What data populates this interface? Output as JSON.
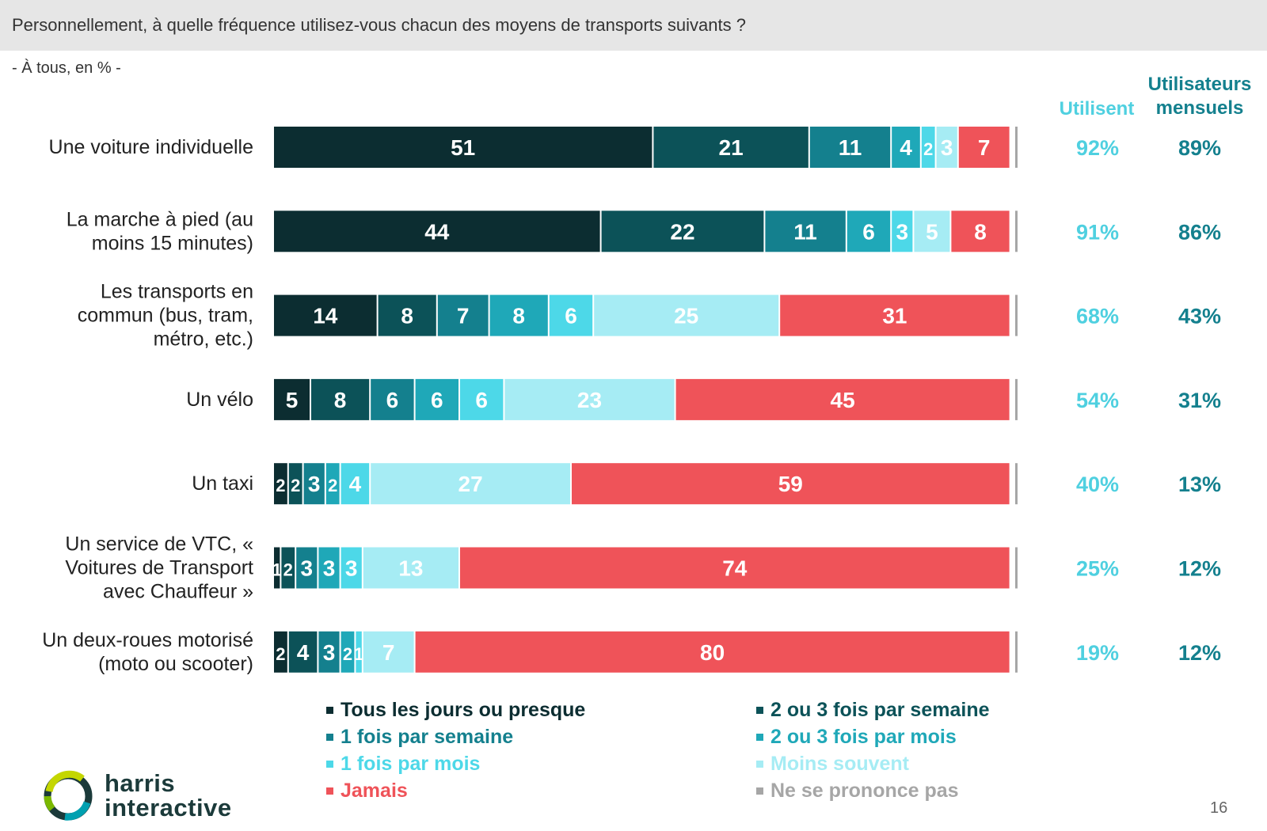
{
  "header": {
    "question": "Personnellement, à quelle fréquence utilisez-vous chacun des moyens de transports suivants ?",
    "base": "- À tous, en % -"
  },
  "columns": {
    "use_label": "Utilisent",
    "monthly_label": "Utilisateurs mensuels"
  },
  "colors": {
    "tous_les_jours": "#0c2d31",
    "deux_trois_semaine": "#0c5258",
    "une_fois_semaine": "#14808e",
    "deux_trois_mois": "#1fa8b8",
    "une_fois_mois": "#4dd8e8",
    "moins_souvent": "#a6ecf4",
    "jamais": "#ef5359",
    "nsp": "#a6a6a6",
    "use_text": "#4fd0e0",
    "monthly_text": "#14808e"
  },
  "chart_data": {
    "type": "bar",
    "orientation": "horizontal",
    "stacked": true,
    "unit": "%",
    "categories": [
      "Une voiture individuelle",
      "La marche à pied (au moins 15 minutes)",
      "Les transports en commun (bus, tram, métro, etc.)",
      "Un vélo",
      "Un taxi",
      "Un service de VTC, « Voitures de Transport avec Chauffeur »",
      "Un deux-roues motorisé (moto ou scooter)"
    ],
    "category_lines": [
      [
        "Une voiture individuelle"
      ],
      [
        "La marche à pied (au",
        "moins 15 minutes)"
      ],
      [
        "Les transports en",
        "commun (bus, tram,",
        "métro, etc.)"
      ],
      [
        "Un vélo"
      ],
      [
        "Un taxi"
      ],
      [
        "Un service de VTC, «",
        "Voitures de Transport",
        "avec Chauffeur »"
      ],
      [
        "Un deux-roues motorisé",
        "(moto ou scooter)"
      ]
    ],
    "series": [
      {
        "name": "Tous les jours ou presque",
        "color": "#0c2d31",
        "values": [
          51,
          44,
          14,
          5,
          2,
          1,
          2
        ]
      },
      {
        "name": "2 ou 3 fois par semaine",
        "color": "#0c5258",
        "values": [
          21,
          22,
          8,
          8,
          2,
          2,
          4
        ]
      },
      {
        "name": "1 fois par semaine",
        "color": "#14808e",
        "values": [
          11,
          11,
          7,
          6,
          3,
          3,
          3
        ]
      },
      {
        "name": "2 ou 3 fois par mois",
        "color": "#1fa8b8",
        "values": [
          4,
          6,
          8,
          6,
          2,
          3,
          2
        ]
      },
      {
        "name": "1 fois par mois",
        "color": "#4dd8e8",
        "values": [
          2,
          3,
          6,
          6,
          4,
          3,
          1
        ]
      },
      {
        "name": "Moins souvent",
        "color": "#a6ecf4",
        "values": [
          3,
          5,
          25,
          23,
          27,
          13,
          7
        ]
      },
      {
        "name": "Jamais",
        "color": "#ef5359",
        "values": [
          7,
          8,
          31,
          45,
          59,
          74,
          80
        ]
      },
      {
        "name": "Ne se prononce pas",
        "color": "#a6a6a6",
        "values": [
          0,
          0,
          0,
          0,
          0,
          0,
          0
        ]
      }
    ],
    "utilisent": [
      "92%",
      "91%",
      "68%",
      "54%",
      "40%",
      "25%",
      "19%"
    ],
    "utilisateurs_mensuels": [
      "89%",
      "86%",
      "43%",
      "31%",
      "13%",
      "12%",
      "12%"
    ],
    "legend": [
      {
        "label": "Tous les jours ou presque",
        "color": "#0c2d31"
      },
      {
        "label": "2 ou 3 fois par semaine",
        "color": "#0c5258"
      },
      {
        "label": "1 fois par semaine",
        "color": "#14808e"
      },
      {
        "label": "2 ou 3 fois par mois",
        "color": "#1fa8b8"
      },
      {
        "label": "1 fois par mois",
        "color": "#4dd8e8"
      },
      {
        "label": "Moins souvent",
        "color": "#a6ecf4"
      },
      {
        "label": "Jamais",
        "color": "#ef5359"
      },
      {
        "label": "Ne se prononce pas",
        "color": "#a6a6a6"
      }
    ],
    "legend_placement": "bottom"
  },
  "brand": {
    "line1": "harris",
    "line2": "interactive"
  },
  "page_number": "16"
}
